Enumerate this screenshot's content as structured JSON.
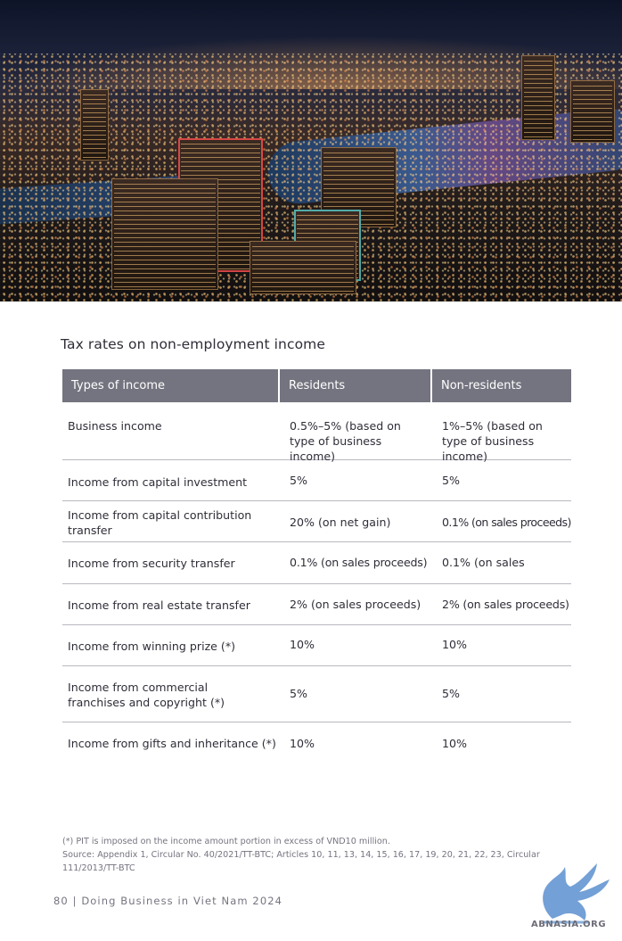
{
  "section_title": "Tax rates on non-employment income",
  "table": {
    "headers": [
      "Types of income",
      "Residents",
      "Non-residents"
    ],
    "rows": [
      {
        "type": "Business income",
        "residents": "0.5%–5% (based on type of business income)",
        "non_residents": "1%–5% (based on type of business income)"
      },
      {
        "type": "Income from capital investment",
        "residents": "5%",
        "non_residents": "5%"
      },
      {
        "type": "Income from capital contribution transfer",
        "residents": "20% (on net gain)",
        "non_residents": "0.1% (on sales proceeds)"
      },
      {
        "type": "Income from security transfer",
        "residents": "0.1% (on sales proceeds)",
        "non_residents": "0.1% (on sales"
      },
      {
        "type": "Income from real estate transfer",
        "residents": "2% (on sales proceeds)",
        "non_residents": "2% (on sales proceeds)"
      },
      {
        "type": "Income from winning prize (*)",
        "residents": "10%",
        "non_residents": "10%"
      },
      {
        "type": "Income from commercial franchises and copyright (*)",
        "residents": "5%",
        "non_residents": "5%"
      },
      {
        "type": "Income from gifts and inheritance (*)",
        "residents": "10%",
        "non_residents": "10%"
      }
    ]
  },
  "footnote": "(*) PIT is imposed on the income amount portion in excess of VND10 million.",
  "source": "Source: Appendix 1, Circular No. 40/2021/TT-BTC; Articles 10, 11, 13, 14, 15, 16, 17, 19, 20, 21, 22, 23, Circular 111/2013/TT-BTC",
  "page_footer": "80 | Doing Business in Viet Nam 2024",
  "watermark_text": "ABNASIA.ORG",
  "colors": {
    "header_bg": "#747480",
    "text": "#2e2e38",
    "muted": "#747480",
    "logo_blue": "#5b8fcf"
  }
}
